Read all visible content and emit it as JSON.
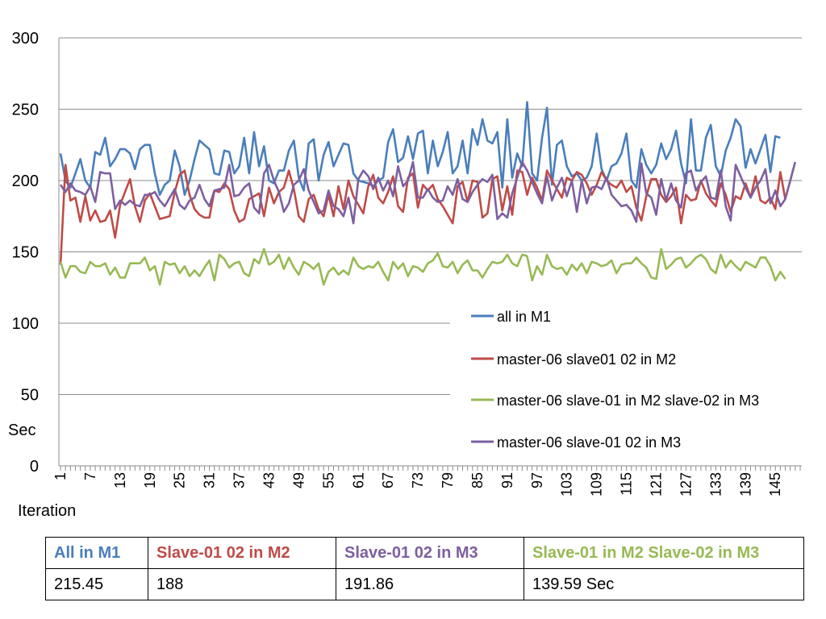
{
  "chart_data": {
    "type": "line",
    "ylabel": "Sec",
    "xlabel": "Iteration",
    "ylim": [
      0,
      300
    ],
    "yticks": [
      0,
      50,
      100,
      150,
      200,
      250,
      300
    ],
    "xlim": [
      1,
      150
    ],
    "xticks": [
      1,
      7,
      13,
      19,
      25,
      31,
      37,
      43,
      49,
      55,
      61,
      67,
      73,
      79,
      85,
      91,
      97,
      103,
      109,
      115,
      121,
      127,
      133,
      139,
      145
    ],
    "grid": "horizontal",
    "legend_position": "right",
    "series": [
      {
        "name": "all in M1",
        "color": "#4a7ebb",
        "values": [
          219,
          200,
          195,
          205,
          215,
          200,
          195,
          220,
          218,
          230,
          210,
          215,
          222,
          222,
          219,
          208,
          222,
          225,
          225,
          205,
          190,
          197,
          200,
          221,
          210,
          190,
          200,
          215,
          228,
          225,
          222,
          205,
          204,
          221,
          220,
          205,
          210,
          230,
          205,
          234,
          210,
          224,
          200,
          198,
          207,
          207,
          221,
          228,
          202,
          193,
          226,
          229,
          200,
          218,
          227,
          210,
          218,
          226,
          225,
          205,
          200,
          199,
          198,
          196,
          200,
          202,
          227,
          236,
          213,
          216,
          231,
          215,
          233,
          235,
          205,
          228,
          210,
          220,
          234,
          205,
          210,
          228,
          205,
          236,
          225,
          243,
          228,
          226,
          234,
          195,
          243,
          202,
          219,
          210,
          255,
          205,
          200,
          230,
          251,
          197,
          225,
          228,
          210,
          203,
          205,
          200,
          202,
          210,
          233,
          208,
          200,
          210,
          212,
          219,
          233,
          200,
          195,
          222,
          211,
          205,
          211,
          226,
          215,
          222,
          235,
          212,
          198,
          243,
          207,
          207,
          230,
          239,
          210,
          203,
          221,
          230,
          243,
          238,
          209,
          222,
          212,
          222,
          232,
          206,
          231,
          230
        ],
        "note": ""
      },
      {
        "name": "master-06  slave01 02 in M2",
        "color": "#be4b48",
        "values": [
          141,
          211,
          186,
          188,
          171,
          189,
          172,
          179,
          171,
          172,
          179,
          160,
          183,
          192,
          201,
          182,
          171,
          186,
          191,
          182,
          173,
          174,
          175,
          192,
          204,
          207,
          190,
          180,
          176,
          174,
          174,
          193,
          192,
          198,
          194,
          179,
          171,
          173,
          187,
          189,
          191,
          175,
          195,
          184,
          192,
          195,
          207,
          194,
          175,
          171,
          187,
          190,
          180,
          175,
          190,
          175,
          196,
          180,
          200,
          189,
          183,
          177,
          196,
          204,
          188,
          184,
          192,
          203,
          182,
          178,
          202,
          205,
          181,
          197,
          193,
          197,
          187,
          182,
          176,
          170,
          196,
          199,
          185,
          200,
          199,
          174,
          177,
          201,
          203,
          179,
          196,
          176,
          207,
          206,
          190,
          202,
          195,
          186,
          207,
          200,
          194,
          188,
          202,
          200,
          206,
          204,
          198,
          190,
          197,
          206,
          200,
          197,
          195,
          200,
          192,
          196,
          181,
          172,
          189,
          201,
          201,
          190,
          185,
          189,
          195,
          170,
          190,
          186,
          187,
          200,
          191,
          186,
          182,
          198,
          190,
          178,
          189,
          187,
          198,
          188,
          203,
          186,
          184,
          188,
          180,
          206,
          187
        ]
      },
      {
        "name": "master-06  slave-01 in M2 slave-02 in M3",
        "color": "#98b954",
        "values": [
          143,
          132,
          140,
          140,
          136,
          135,
          143,
          140,
          140,
          142,
          134,
          139,
          132,
          132,
          142,
          142,
          142,
          146,
          137,
          140,
          127,
          143,
          141,
          142,
          135,
          140,
          133,
          137,
          133,
          139,
          144,
          130,
          148,
          145,
          139,
          142,
          143,
          135,
          133,
          145,
          142,
          152,
          141,
          143,
          148,
          138,
          146,
          139,
          134,
          143,
          141,
          138,
          142,
          127,
          136,
          139,
          134,
          137,
          134,
          146,
          140,
          138,
          140,
          139,
          143,
          136,
          130,
          143,
          138,
          142,
          133,
          140,
          139,
          136,
          142,
          144,
          149,
          140,
          139,
          143,
          135,
          141,
          144,
          137,
          137,
          132,
          138,
          143,
          142,
          143,
          148,
          142,
          140,
          148,
          147,
          130,
          140,
          134,
          148,
          140,
          138,
          139,
          134,
          141,
          137,
          142,
          135,
          143,
          142,
          140,
          141,
          144,
          135,
          141,
          142,
          142,
          146,
          142,
          139,
          132,
          131,
          152,
          138,
          141,
          145,
          146,
          139,
          142,
          146,
          148,
          145,
          138,
          135,
          148,
          139,
          144,
          140,
          137,
          143,
          141,
          139,
          146,
          146,
          140,
          130,
          136,
          131
        ]
      },
      {
        "name": "master-06  slave-01 02 in M3",
        "color": "#7d5fa0",
        "values": [
          197,
          192,
          198,
          193,
          192,
          190,
          196,
          185,
          206,
          205,
          205,
          180,
          186,
          183,
          186,
          183,
          182,
          190,
          190,
          192,
          186,
          182,
          188,
          194,
          183,
          180,
          186,
          188,
          197,
          187,
          182,
          193,
          194,
          195,
          211,
          189,
          190,
          195,
          198,
          181,
          177,
          205,
          211,
          200,
          192,
          178,
          184,
          197,
          200,
          208,
          193,
          185,
          177,
          179,
          193,
          182,
          180,
          175,
          188,
          170,
          201,
          207,
          203,
          194,
          202,
          193,
          200,
          189,
          210,
          196,
          200,
          213,
          188,
          188,
          194,
          188,
          185,
          186,
          196,
          190,
          201,
          187,
          185,
          192,
          197,
          201,
          199,
          204,
          173,
          177,
          174,
          191,
          202,
          213,
          207,
          199,
          191,
          184,
          203,
          186,
          195,
          202,
          189,
          200,
          178,
          200,
          184,
          195,
          196,
          194,
          202,
          190,
          186,
          182,
          183,
          179,
          171,
          212,
          191,
          188,
          176,
          201,
          186,
          198,
          186,
          181,
          205,
          207,
          193,
          199,
          203,
          188,
          187,
          207,
          182,
          172,
          211,
          203,
          195,
          188,
          195,
          200,
          208,
          184,
          193,
          182,
          187,
          200,
          213
        ]
      }
    ]
  },
  "summary_table": {
    "headers": [
      "All in M1",
      "Slave-01 02 in M2",
      "Slave-01 02 in M3",
      "Slave-01 in M2 Slave-02 in M3"
    ],
    "header_colors": [
      "#4a7ebb",
      "#be4b48",
      "#7d5fa0",
      "#98b954"
    ],
    "values": [
      "215.45",
      "188",
      "191.86",
      "139.59   Sec"
    ]
  }
}
